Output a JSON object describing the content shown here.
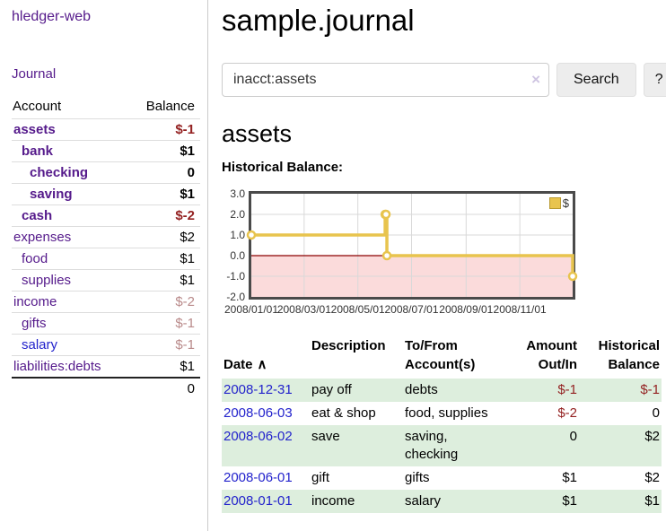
{
  "colors": {
    "purple_link": "#551A8B",
    "blue_link": "#2323cc",
    "negative": "#942222",
    "negative_muted": "#b98a8a",
    "row_green": "#ddeedd",
    "gold": "#e8c44e",
    "gold_dark": "#b8992f",
    "pink": "#fbdbdb",
    "zero_line": "#8b0000",
    "grid": "#d9d9d9",
    "chart_border": "#4a4a4a"
  },
  "sidebar": {
    "brand": "hledger-web",
    "journal_link": "Journal",
    "table": {
      "account_header": "Account",
      "balance_header": "Balance",
      "rows": [
        {
          "label": "assets",
          "indent": 1,
          "bold": true,
          "balance": "$-1",
          "balance_class": "neg"
        },
        {
          "label": "bank",
          "indent": 2,
          "bold": true,
          "balance": "$1",
          "balance_class": ""
        },
        {
          "label": "checking",
          "indent": 3,
          "bold": true,
          "balance": "0",
          "balance_class": ""
        },
        {
          "label": "saving",
          "indent": 3,
          "bold": true,
          "balance": "$1",
          "balance_class": ""
        },
        {
          "label": "cash",
          "indent": 2,
          "bold": true,
          "balance": "$-2",
          "balance_class": "neg"
        },
        {
          "label": "expenses",
          "indent": 1,
          "bold": false,
          "balance": "$2",
          "balance_class": ""
        },
        {
          "label": "food",
          "indent": 2,
          "bold": false,
          "balance": "$1",
          "balance_class": ""
        },
        {
          "label": "supplies",
          "indent": 2,
          "bold": false,
          "balance": "$1",
          "balance_class": ""
        },
        {
          "label": "income",
          "indent": 1,
          "bold": false,
          "balance": "$-2",
          "balance_class": "neg-muted"
        },
        {
          "label": "gifts",
          "indent": 2,
          "bold": false,
          "balance": "$-1",
          "balance_class": "neg-muted"
        },
        {
          "label": "salary",
          "indent": 2,
          "bold": false,
          "balance": "$-1",
          "balance_class": "neg-muted",
          "link_class": "blue"
        },
        {
          "label": "liabilities:debts",
          "indent": 1,
          "bold": false,
          "balance": "$1",
          "balance_class": ""
        }
      ],
      "total": "0"
    }
  },
  "main": {
    "title": "sample.journal",
    "search": {
      "value": "inacct:assets",
      "clear_icon": "×",
      "button_label": "Search",
      "help_label": "?"
    },
    "account_heading": "assets",
    "chart_label": "Historical Balance:"
  },
  "chart_data": {
    "type": "line",
    "step": true,
    "title": "Historical Balance",
    "x_range": [
      "2008-01-01",
      "2008-12-31"
    ],
    "ylim": [
      -2,
      3
    ],
    "y_ticks": [
      "3.0",
      "2.0",
      "1.0",
      "0.0",
      "-1.0",
      "-2.0"
    ],
    "x_ticks": [
      "2008/01/01",
      "2008/03/01",
      "2008/05/01",
      "2008/07/01",
      "2008/09/01",
      "2008/11/01"
    ],
    "grid": true,
    "legend_position": "top-right",
    "series": [
      {
        "name": "$",
        "color": "#e8c44e",
        "points": [
          [
            "2008-01-01",
            1
          ],
          [
            "2008-06-01",
            2
          ],
          [
            "2008-06-02",
            2
          ],
          [
            "2008-06-03",
            0
          ],
          [
            "2008-12-31",
            -1
          ]
        ]
      }
    ]
  },
  "register": {
    "headers": {
      "date": "Date",
      "sort_icon": "∧",
      "description": "Description",
      "tofrom": "To/From\nAccount(s)",
      "amount": "Amount\nOut/In",
      "balance": "Historical\nBalance"
    },
    "rows": [
      {
        "date": "2008-12-31",
        "description": "pay off",
        "accounts": "debts",
        "amount": "$-1",
        "amount_class": "neg",
        "balance": "$-1",
        "balance_class": "neg"
      },
      {
        "date": "2008-06-03",
        "description": "eat & shop",
        "accounts": "food, supplies",
        "amount": "$-2",
        "amount_class": "neg",
        "balance": "0",
        "balance_class": ""
      },
      {
        "date": "2008-06-02",
        "description": "save",
        "accounts": "saving, checking",
        "amount": "0",
        "amount_class": "",
        "balance": "$2",
        "balance_class": ""
      },
      {
        "date": "2008-06-01",
        "description": "gift",
        "accounts": "gifts",
        "amount": "$1",
        "amount_class": "",
        "balance": "$2",
        "balance_class": ""
      },
      {
        "date": "2008-01-01",
        "description": "income",
        "accounts": "salary",
        "amount": "$1",
        "amount_class": "",
        "balance": "$1",
        "balance_class": ""
      }
    ]
  }
}
